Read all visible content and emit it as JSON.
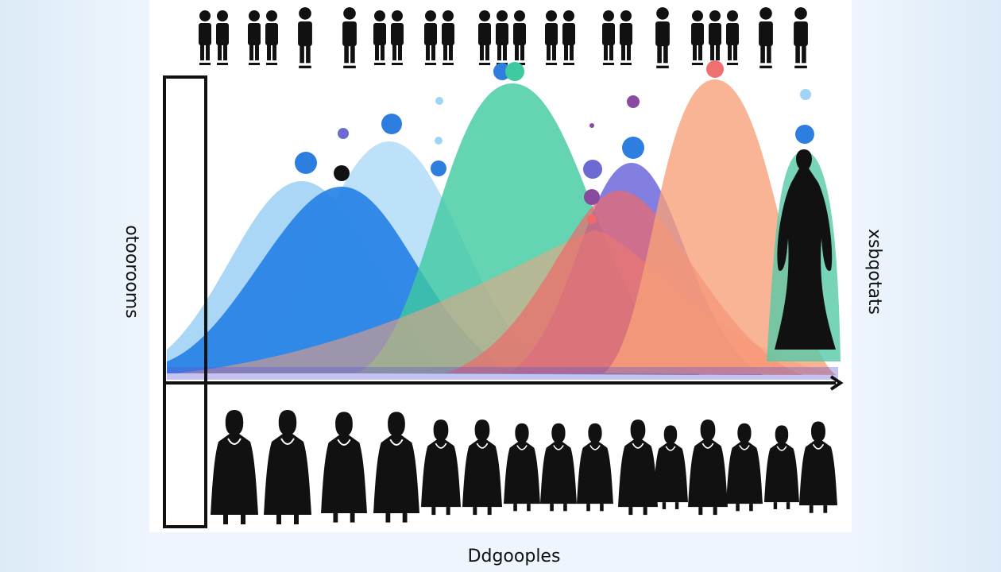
{
  "left_label": "otoorooms",
  "right_label": "xsbqotats",
  "x_label": "Ddgooples"
}
